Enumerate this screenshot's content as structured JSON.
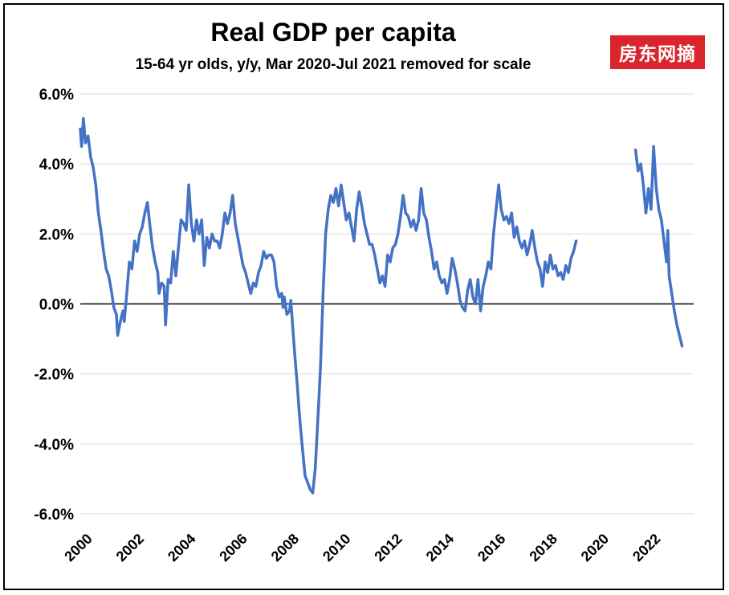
{
  "chart_data": {
    "type": "line",
    "title": "Real GDP per capita",
    "subtitle": "15-64 yr olds, y/y, Mar 2020-Jul 2021 removed for scale",
    "watermark": "房东网摘",
    "xlabel": "",
    "ylabel": "",
    "ylim": [
      -6,
      6
    ],
    "xlim": [
      2000,
      2023.75
    ],
    "yticks": [
      -6,
      -4,
      -2,
      0,
      2,
      4,
      6
    ],
    "ytick_labels": [
      "-6.0%",
      "-4.0%",
      "-2.0%",
      "0.0%",
      "2.0%",
      "4.0%",
      "6.0%"
    ],
    "xticks": [
      2000,
      2002,
      2004,
      2006,
      2008,
      2010,
      2012,
      2014,
      2016,
      2018,
      2020,
      2022
    ],
    "xtick_labels": [
      "2000",
      "2002",
      "2004",
      "2006",
      "2008",
      "2010",
      "2012",
      "2014",
      "2016",
      "2018",
      "2020",
      "2022"
    ],
    "grid": "horizontal",
    "legend": "none",
    "line_color": "#4472c4",
    "series": [
      {
        "segments": [
          [
            [
              2000.0,
              5.0
            ],
            [
              2000.05,
              4.5
            ],
            [
              2000.12,
              5.3
            ],
            [
              2000.2,
              4.6
            ],
            [
              2000.3,
              4.8
            ],
            [
              2000.4,
              4.2
            ],
            [
              2000.5,
              3.9
            ],
            [
              2000.6,
              3.4
            ],
            [
              2000.7,
              2.6
            ],
            [
              2000.8,
              2.1
            ],
            [
              2000.9,
              1.5
            ],
            [
              2001.0,
              1.0
            ],
            [
              2001.1,
              0.8
            ],
            [
              2001.2,
              0.4
            ],
            [
              2001.3,
              -0.1
            ],
            [
              2001.4,
              -0.3
            ],
            [
              2001.45,
              -0.9
            ],
            [
              2001.55,
              -0.5
            ],
            [
              2001.65,
              -0.2
            ],
            [
              2001.7,
              -0.5
            ],
            [
              2001.8,
              0.3
            ],
            [
              2001.9,
              1.2
            ],
            [
              2002.0,
              1.0
            ],
            [
              2002.1,
              1.8
            ],
            [
              2002.2,
              1.5
            ],
            [
              2002.3,
              2.0
            ],
            [
              2002.4,
              2.2
            ],
            [
              2002.5,
              2.6
            ],
            [
              2002.6,
              2.9
            ],
            [
              2002.7,
              2.2
            ],
            [
              2002.8,
              1.6
            ],
            [
              2002.9,
              1.2
            ],
            [
              2003.0,
              0.9
            ],
            [
              2003.05,
              0.3
            ],
            [
              2003.15,
              0.6
            ],
            [
              2003.25,
              0.5
            ],
            [
              2003.3,
              -0.6
            ],
            [
              2003.4,
              0.7
            ],
            [
              2003.5,
              0.6
            ],
            [
              2003.6,
              1.5
            ],
            [
              2003.7,
              0.8
            ],
            [
              2003.8,
              1.6
            ],
            [
              2003.9,
              2.4
            ],
            [
              2004.0,
              2.3
            ],
            [
              2004.1,
              2.1
            ],
            [
              2004.2,
              3.4
            ],
            [
              2004.3,
              2.3
            ],
            [
              2004.4,
              1.8
            ],
            [
              2004.5,
              2.4
            ],
            [
              2004.6,
              2.0
            ],
            [
              2004.7,
              2.4
            ],
            [
              2004.8,
              1.1
            ],
            [
              2004.9,
              1.9
            ],
            [
              2005.0,
              1.6
            ],
            [
              2005.1,
              2.0
            ],
            [
              2005.2,
              1.8
            ],
            [
              2005.3,
              1.8
            ],
            [
              2005.4,
              1.6
            ],
            [
              2005.5,
              2.0
            ],
            [
              2005.6,
              2.6
            ],
            [
              2005.7,
              2.3
            ],
            [
              2005.8,
              2.6
            ],
            [
              2005.9,
              3.1
            ],
            [
              2006.0,
              2.3
            ],
            [
              2006.1,
              1.9
            ],
            [
              2006.2,
              1.5
            ],
            [
              2006.3,
              1.1
            ],
            [
              2006.4,
              0.9
            ],
            [
              2006.5,
              0.6
            ],
            [
              2006.6,
              0.3
            ],
            [
              2006.7,
              0.6
            ],
            [
              2006.8,
              0.5
            ],
            [
              2006.9,
              0.9
            ],
            [
              2007.0,
              1.1
            ],
            [
              2007.1,
              1.5
            ],
            [
              2007.2,
              1.3
            ],
            [
              2007.3,
              1.4
            ],
            [
              2007.4,
              1.4
            ],
            [
              2007.5,
              1.2
            ],
            [
              2007.6,
              0.5
            ],
            [
              2007.7,
              0.2
            ],
            [
              2007.8,
              0.3
            ],
            [
              2007.85,
              -0.1
            ],
            [
              2007.9,
              0.2
            ],
            [
              2008.0,
              -0.3
            ],
            [
              2008.1,
              -0.2
            ],
            [
              2008.15,
              0.1
            ],
            [
              2008.2,
              -0.4
            ],
            [
              2008.3,
              -1.4
            ],
            [
              2008.4,
              -2.3
            ],
            [
              2008.5,
              -3.3
            ],
            [
              2008.6,
              -4.1
            ],
            [
              2008.7,
              -4.9
            ],
            [
              2008.8,
              -5.1
            ],
            [
              2008.9,
              -5.3
            ],
            [
              2009.0,
              -5.4
            ],
            [
              2009.1,
              -4.7
            ],
            [
              2009.2,
              -3.3
            ],
            [
              2009.3,
              -1.8
            ],
            [
              2009.4,
              0.3
            ],
            [
              2009.5,
              2.0
            ],
            [
              2009.6,
              2.7
            ],
            [
              2009.7,
              3.1
            ],
            [
              2009.8,
              2.9
            ],
            [
              2009.9,
              3.3
            ],
            [
              2010.0,
              2.8
            ],
            [
              2010.1,
              3.4
            ],
            [
              2010.2,
              2.9
            ],
            [
              2010.3,
              2.4
            ],
            [
              2010.4,
              2.6
            ],
            [
              2010.5,
              2.2
            ],
            [
              2010.6,
              1.8
            ],
            [
              2010.7,
              2.7
            ],
            [
              2010.8,
              3.2
            ],
            [
              2010.9,
              2.8
            ],
            [
              2011.0,
              2.3
            ],
            [
              2011.1,
              2.0
            ],
            [
              2011.2,
              1.7
            ],
            [
              2011.3,
              1.7
            ],
            [
              2011.4,
              1.4
            ],
            [
              2011.5,
              1.0
            ],
            [
              2011.6,
              0.6
            ],
            [
              2011.7,
              0.8
            ],
            [
              2011.8,
              0.5
            ],
            [
              2011.9,
              1.4
            ],
            [
              2012.0,
              1.2
            ],
            [
              2012.1,
              1.6
            ],
            [
              2012.2,
              1.7
            ],
            [
              2012.3,
              2.0
            ],
            [
              2012.4,
              2.5
            ],
            [
              2012.5,
              3.1
            ],
            [
              2012.6,
              2.6
            ],
            [
              2012.7,
              2.5
            ],
            [
              2012.8,
              2.2
            ],
            [
              2012.9,
              2.4
            ],
            [
              2013.0,
              2.1
            ],
            [
              2013.1,
              2.4
            ],
            [
              2013.2,
              3.3
            ],
            [
              2013.3,
              2.6
            ],
            [
              2013.4,
              2.4
            ],
            [
              2013.5,
              1.9
            ],
            [
              2013.6,
              1.5
            ],
            [
              2013.7,
              1.0
            ],
            [
              2013.8,
              1.2
            ],
            [
              2013.9,
              0.8
            ],
            [
              2014.0,
              0.6
            ],
            [
              2014.1,
              0.7
            ],
            [
              2014.2,
              0.3
            ],
            [
              2014.3,
              0.7
            ],
            [
              2014.4,
              1.3
            ],
            [
              2014.5,
              1.0
            ],
            [
              2014.6,
              0.6
            ],
            [
              2014.7,
              0.1
            ],
            [
              2014.8,
              -0.1
            ],
            [
              2014.9,
              -0.2
            ],
            [
              2015.0,
              0.4
            ],
            [
              2015.1,
              0.7
            ],
            [
              2015.2,
              0.2
            ],
            [
              2015.3,
              0.0
            ],
            [
              2015.4,
              0.7
            ],
            [
              2015.5,
              -0.2
            ],
            [
              2015.6,
              0.5
            ],
            [
              2015.7,
              0.8
            ],
            [
              2015.8,
              1.2
            ],
            [
              2015.9,
              1.0
            ],
            [
              2016.0,
              2.0
            ],
            [
              2016.1,
              2.7
            ],
            [
              2016.2,
              3.4
            ],
            [
              2016.3,
              2.7
            ],
            [
              2016.4,
              2.4
            ],
            [
              2016.5,
              2.5
            ],
            [
              2016.6,
              2.3
            ],
            [
              2016.7,
              2.6
            ],
            [
              2016.8,
              1.9
            ],
            [
              2016.9,
              2.2
            ],
            [
              2017.0,
              1.8
            ],
            [
              2017.1,
              1.6
            ],
            [
              2017.2,
              1.8
            ],
            [
              2017.3,
              1.4
            ],
            [
              2017.4,
              1.7
            ],
            [
              2017.5,
              2.1
            ],
            [
              2017.6,
              1.6
            ],
            [
              2017.7,
              1.2
            ],
            [
              2017.8,
              1.0
            ],
            [
              2017.9,
              0.5
            ],
            [
              2018.0,
              1.2
            ],
            [
              2018.1,
              0.9
            ],
            [
              2018.2,
              1.4
            ],
            [
              2018.3,
              1.0
            ],
            [
              2018.4,
              1.1
            ],
            [
              2018.5,
              0.8
            ],
            [
              2018.6,
              0.9
            ],
            [
              2018.7,
              0.7
            ],
            [
              2018.8,
              1.1
            ],
            [
              2018.9,
              0.9
            ],
            [
              2019.0,
              1.3
            ],
            [
              2019.1,
              1.5
            ],
            [
              2019.2,
              1.8
            ]
          ],
          [
            [
              2021.5,
              4.4
            ],
            [
              2021.6,
              3.8
            ],
            [
              2021.7,
              4.0
            ],
            [
              2021.8,
              3.4
            ],
            [
              2021.9,
              2.6
            ],
            [
              2022.0,
              3.3
            ],
            [
              2022.1,
              2.7
            ],
            [
              2022.2,
              4.5
            ],
            [
              2022.3,
              3.3
            ],
            [
              2022.4,
              2.7
            ],
            [
              2022.5,
              2.4
            ],
            [
              2022.6,
              1.8
            ],
            [
              2022.7,
              1.2
            ],
            [
              2022.75,
              2.1
            ],
            [
              2022.8,
              0.8
            ],
            [
              2022.9,
              0.3
            ],
            [
              2023.0,
              -0.2
            ],
            [
              2023.1,
              -0.6
            ],
            [
              2023.2,
              -0.9
            ],
            [
              2023.3,
              -1.2
            ]
          ]
        ]
      }
    ]
  }
}
